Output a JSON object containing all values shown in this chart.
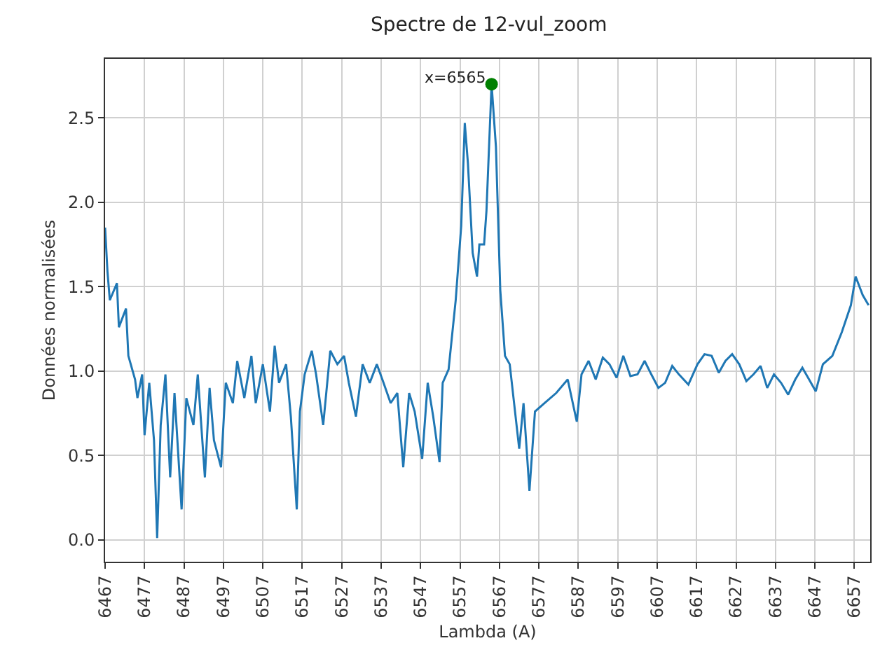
{
  "chart_data": {
    "type": "line",
    "title": "Spectre de 12-vul_zoom",
    "xlabel": "Lambda (A)",
    "ylabel": "Données normalisées",
    "xlim": [
      6467,
      6661
    ],
    "xticks": [
      6467,
      6477,
      6487,
      6497,
      6507,
      6517,
      6527,
      6537,
      6547,
      6557,
      6567,
      6577,
      6587,
      6597,
      6607,
      6617,
      6627,
      6637,
      6647,
      6657
    ],
    "ylim": [
      -0.13,
      2.85
    ],
    "yticks": [
      {
        "value": 0,
        "label": "0.0"
      },
      {
        "value": 0.5,
        "label": "0.5"
      },
      {
        "value": 1,
        "label": "1.0"
      },
      {
        "value": 1.5,
        "label": "1.5"
      },
      {
        "value": 2,
        "label": "2.0"
      },
      {
        "value": 2.5,
        "label": "2.5"
      }
    ],
    "grid": true,
    "annotations": [
      {
        "text": "x=6565",
        "x": 6565,
        "y": 2.7
      }
    ],
    "series": [
      {
        "color": "#1f77b4",
        "x": [
          6467,
          6467.6,
          6468.2,
          6470,
          6470.5,
          6472.3,
          6472.9,
          6474.6,
          6475.2,
          6476.4,
          6477,
          6478.2,
          6479.4,
          6480.2,
          6481.1,
          6482.3,
          6483.5,
          6484.6,
          6486.4,
          6487.6,
          6489.4,
          6490.5,
          6492.3,
          6493.5,
          6494.6,
          6496.4,
          6497.6,
          6499.4,
          6500.5,
          6502.3,
          6504.1,
          6505.2,
          6507,
          6508.8,
          6510,
          6511.1,
          6512.9,
          6514.1,
          6515.6,
          6516.4,
          6517.6,
          6519.4,
          6520.5,
          6522.3,
          6524.1,
          6525.9,
          6527.6,
          6528.8,
          6530.6,
          6532.3,
          6534.1,
          6535.9,
          6537.6,
          6539.4,
          6541.1,
          6542.6,
          6544.1,
          6545.5,
          6547.4,
          6548.8,
          6550.2,
          6551.8,
          6552.6,
          6554.1,
          6555.9,
          6557.3,
          6558.2,
          6559,
          6560.2,
          6561.3,
          6561.9,
          6563.1,
          6563.7,
          6565,
          6566.1,
          6567.2,
          6568.4,
          6569.6,
          6572,
          6573.1,
          6574.6,
          6576,
          6578.4,
          6581.4,
          6584.3,
          6586.6,
          6587.8,
          6589.6,
          6591.4,
          6593.2,
          6594.9,
          6596.7,
          6598.4,
          6600.2,
          6602,
          6603.8,
          6605.5,
          6607.3,
          6609,
          6610.8,
          6612.5,
          6614.9,
          6617.2,
          6619,
          6620.8,
          6622.6,
          6624.3,
          6626,
          6627.8,
          6629.6,
          6631.4,
          6633.2,
          6634.9,
          6636.6,
          6638.4,
          6640.2,
          6642,
          6643.8,
          6645.5,
          6647.2,
          6649,
          6651.4,
          6653.8,
          6656.1,
          6657.3,
          6659.1,
          6660.6
        ],
        "values": [
          1.85,
          1.59,
          1.42,
          1.52,
          1.26,
          1.37,
          1.09,
          0.95,
          0.84,
          0.98,
          0.62,
          0.93,
          0.59,
          0.01,
          0.68,
          0.98,
          0.37,
          0.87,
          0.18,
          0.84,
          0.68,
          0.98,
          0.37,
          0.9,
          0.59,
          0.43,
          0.93,
          0.81,
          1.06,
          0.84,
          1.09,
          0.81,
          1.04,
          0.76,
          1.15,
          0.93,
          1.04,
          0.73,
          0.18,
          0.76,
          0.98,
          1.12,
          0.98,
          0.68,
          1.12,
          1.04,
          1.09,
          0.93,
          0.73,
          1.04,
          0.93,
          1.04,
          0.93,
          0.81,
          0.87,
          0.43,
          0.87,
          0.76,
          0.48,
          0.93,
          0.73,
          0.46,
          0.93,
          1.01,
          1.42,
          1.86,
          2.47,
          2.23,
          1.7,
          1.56,
          1.75,
          1.75,
          1.95,
          2.7,
          2.33,
          1.48,
          1.09,
          1.04,
          0.54,
          0.81,
          0.29,
          0.76,
          0.81,
          0.87,
          0.95,
          0.7,
          0.98,
          1.06,
          0.95,
          1.08,
          1.04,
          0.96,
          1.09,
          0.97,
          0.98,
          1.06,
          0.98,
          0.9,
          0.93,
          1.03,
          0.98,
          0.92,
          1.04,
          1.1,
          1.09,
          0.99,
          1.06,
          1.1,
          1.04,
          0.94,
          0.98,
          1.03,
          0.9,
          0.98,
          0.93,
          0.86,
          0.95,
          1.02,
          0.95,
          0.88,
          1.04,
          1.09,
          1.23,
          1.39,
          1.56,
          1.45,
          1.39
        ]
      },
      {
        "type": "scatter",
        "color": "#008000",
        "marker": "circle",
        "x": [
          6565
        ],
        "values": [
          2.7
        ]
      }
    ]
  }
}
